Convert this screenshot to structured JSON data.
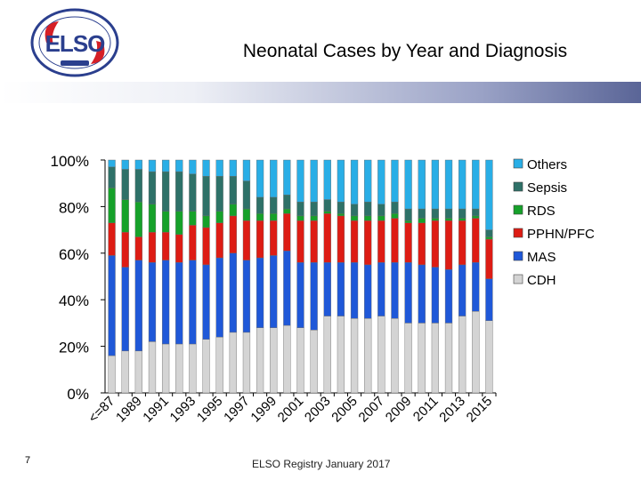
{
  "slide": {
    "title": "Neonatal Cases by Year and Diagnosis",
    "page_number": "7",
    "footer": "ELSO Registry January 2017",
    "logo_text": "EXTRACORPOREAL LIFE SUPPORT ORGANIZATION"
  },
  "colors": {
    "CDH": "#d4d4d4",
    "MAS": "#1f58d8",
    "PPHN/PFC": "#dd1c14",
    "RDS": "#16a12a",
    "Sepsis": "#2e7168",
    "Others": "#29aee6",
    "accent_band": "#5f6b9f"
  },
  "chart_data": {
    "type": "bar",
    "stacked": true,
    "ylim": [
      0,
      100
    ],
    "yticks": [
      "0%",
      "20%",
      "40%",
      "60%",
      "80%",
      "100%"
    ],
    "x_tick_labels": [
      "<=87",
      "1989",
      "1991",
      "1993",
      "1995",
      "1997",
      "1999",
      "2001",
      "2003",
      "2005",
      "2007",
      "2009",
      "2011",
      "2013",
      "2015"
    ],
    "categories": [
      "<=87",
      "1988",
      "1989",
      "1990",
      "1991",
      "1992",
      "1993",
      "1994",
      "1995",
      "1996",
      "1997",
      "1998",
      "1999",
      "2000",
      "2001",
      "2002",
      "2003",
      "2004",
      "2005",
      "2006",
      "2007",
      "2008",
      "2009",
      "2010",
      "2011",
      "2012",
      "2013",
      "2014",
      "2015"
    ],
    "legend_position": "right",
    "series": [
      {
        "name": "CDH",
        "values": [
          16,
          18,
          18,
          22,
          21,
          21,
          21,
          23,
          24,
          26,
          26,
          28,
          28,
          29,
          28,
          27,
          33,
          33,
          32,
          32,
          33,
          32,
          30,
          30,
          30,
          30,
          33,
          35,
          31
        ]
      },
      {
        "name": "MAS",
        "values": [
          43,
          36,
          39,
          34,
          36,
          35,
          36,
          32,
          34,
          34,
          31,
          30,
          31,
          32,
          28,
          29,
          23,
          23,
          24,
          23,
          23,
          24,
          26,
          25,
          24,
          23,
          22,
          21,
          18
        ]
      },
      {
        "name": "PPHN/PFC",
        "values": [
          14,
          15,
          10,
          13,
          12,
          12,
          15,
          16,
          15,
          16,
          17,
          16,
          15,
          16,
          18,
          18,
          21,
          20,
          18,
          19,
          18,
          19,
          17,
          18,
          20,
          21,
          19,
          19,
          17
        ]
      },
      {
        "name": "RDS",
        "values": [
          15,
          14,
          15,
          12,
          9,
          10,
          6,
          5,
          5,
          5,
          5,
          3,
          3,
          2,
          2,
          2,
          1,
          1,
          2,
          2,
          2,
          2,
          1,
          2,
          1,
          1,
          1,
          1,
          1
        ]
      },
      {
        "name": "Sepsis",
        "values": [
          9,
          13,
          14,
          14,
          17,
          17,
          16,
          17,
          15,
          12,
          12,
          7,
          7,
          6,
          6,
          6,
          5,
          5,
          5,
          6,
          5,
          5,
          5,
          4,
          4,
          4,
          4,
          3,
          3
        ]
      },
      {
        "name": "Others",
        "values": [
          3,
          4,
          4,
          5,
          5,
          5,
          6,
          7,
          7,
          7,
          9,
          16,
          16,
          15,
          18,
          18,
          17,
          18,
          19,
          18,
          19,
          18,
          21,
          21,
          21,
          21,
          21,
          21,
          30
        ]
      }
    ]
  }
}
